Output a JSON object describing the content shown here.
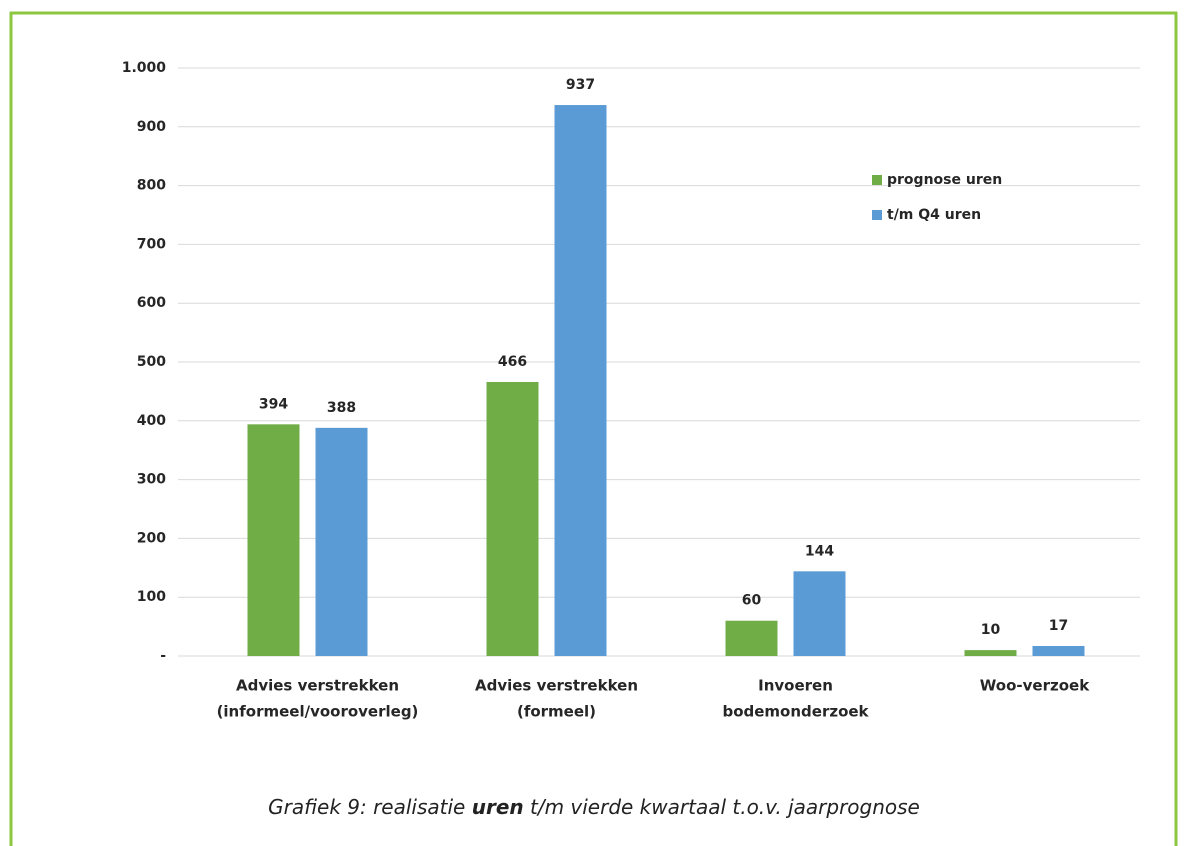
{
  "chart_data": {
    "type": "bar",
    "categories": [
      [
        "Advies verstrekken",
        "(informeel/vooroverleg)"
      ],
      [
        "Advies verstrekken",
        "(formeel)"
      ],
      [
        "Invoeren",
        "bodemonderzoek"
      ],
      [
        "Woo-verzoek"
      ]
    ],
    "series": [
      {
        "name": "prognose uren",
        "color": "#70ad47",
        "values": [
          394,
          466,
          60,
          10
        ]
      },
      {
        "name": "t/m Q4 uren",
        "color": "#5b9bd5",
        "values": [
          388,
          937,
          144,
          17
        ]
      }
    ],
    "ylim": [
      0,
      1000
    ],
    "yticks": [
      {
        "value": 0,
        "label": "-"
      },
      100,
      200,
      300,
      400,
      500,
      600,
      700,
      800,
      900,
      {
        "value": 1000,
        "label": "1.000"
      }
    ],
    "grid": true,
    "legend": "upper right",
    "caption": {
      "prefix": "Grafiek 9: realisatie ",
      "bold": "uren",
      "suffix": " t/m vierde kwartaal t.o.v. jaarprognose"
    }
  }
}
